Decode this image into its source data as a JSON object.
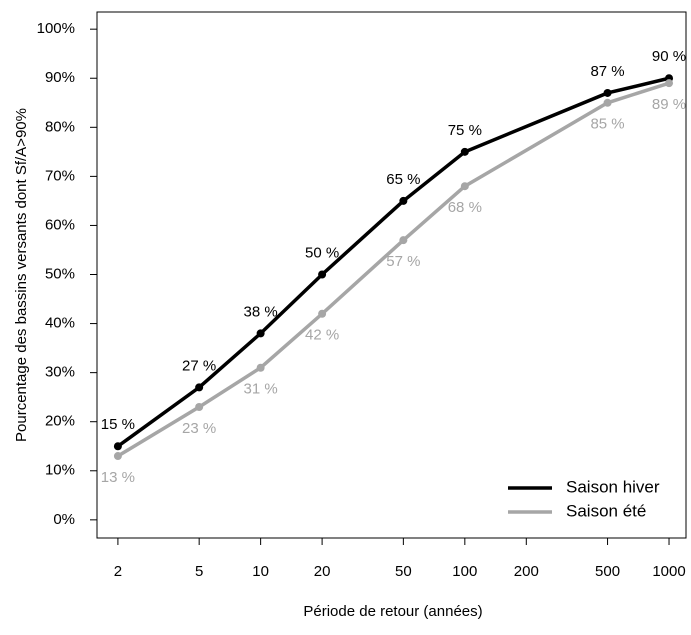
{
  "chart_data": {
    "type": "line",
    "xlabel": "Période de retour (années)",
    "ylabel": "Pourcentage des bassins versants dont Sf/A>90%",
    "x": [
      2,
      5,
      10,
      20,
      50,
      100,
      500,
      1000
    ],
    "xscale": "log",
    "xlim": [
      1.58,
      1211
    ],
    "xticks": [
      2,
      5,
      10,
      20,
      50,
      100,
      200,
      500,
      1000
    ],
    "ylim": [
      -3.7,
      103.5
    ],
    "yticks": [
      {
        "value": 0,
        "label": "0%"
      },
      {
        "value": 10,
        "label": "10%"
      },
      {
        "value": 20,
        "label": "20%"
      },
      {
        "value": 30,
        "label": "30%"
      },
      {
        "value": 40,
        "label": "40%"
      },
      {
        "value": 50,
        "label": "50%"
      },
      {
        "value": 60,
        "label": "60%"
      },
      {
        "value": 70,
        "label": "70%"
      },
      {
        "value": 80,
        "label": "80%"
      },
      {
        "value": 90,
        "label": "90%"
      },
      {
        "value": 100,
        "label": "100%"
      }
    ],
    "legend": "bottom-right",
    "series": [
      {
        "name": "Saison hiver",
        "color": "#000000",
        "label_position": "above",
        "values": [
          15,
          27,
          38,
          50,
          65,
          75,
          87,
          90
        ],
        "value_labels": [
          "15 %",
          "27 %",
          "38 %",
          "50 %",
          "65 %",
          "75 %",
          "87 %",
          "90 %"
        ]
      },
      {
        "name": "Saison été",
        "color": "#a6a6a6",
        "label_position": "below",
        "values": [
          13,
          23,
          31,
          42,
          57,
          68,
          85,
          89
        ],
        "value_labels": [
          "13 %",
          "23 %",
          "31 %",
          "42 %",
          "57 %",
          "68 %",
          "85 %",
          "89 %"
        ]
      }
    ]
  }
}
